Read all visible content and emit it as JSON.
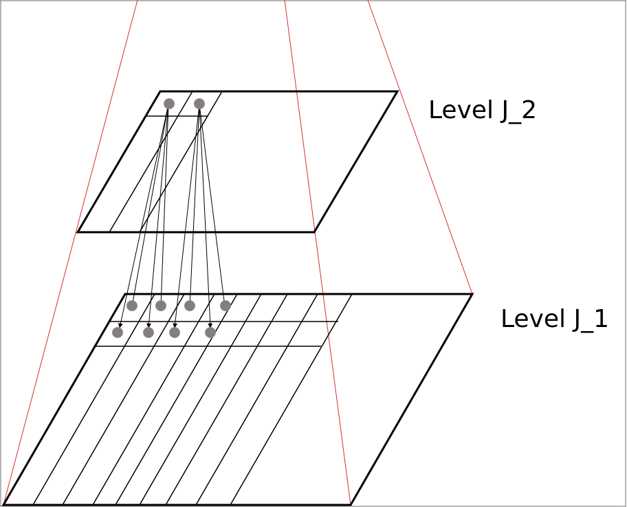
{
  "labels": {
    "level_top": "Level J_2",
    "level_bottom": "Level J_1"
  },
  "colors": {
    "frustum": "#d32f2f",
    "plane": "#000000",
    "node_fill": "#7f7f7f",
    "node_stroke": "#b08080",
    "border": "#9e9e9e"
  },
  "icons": {
    "arrowhead": "arrowhead-icon"
  }
}
